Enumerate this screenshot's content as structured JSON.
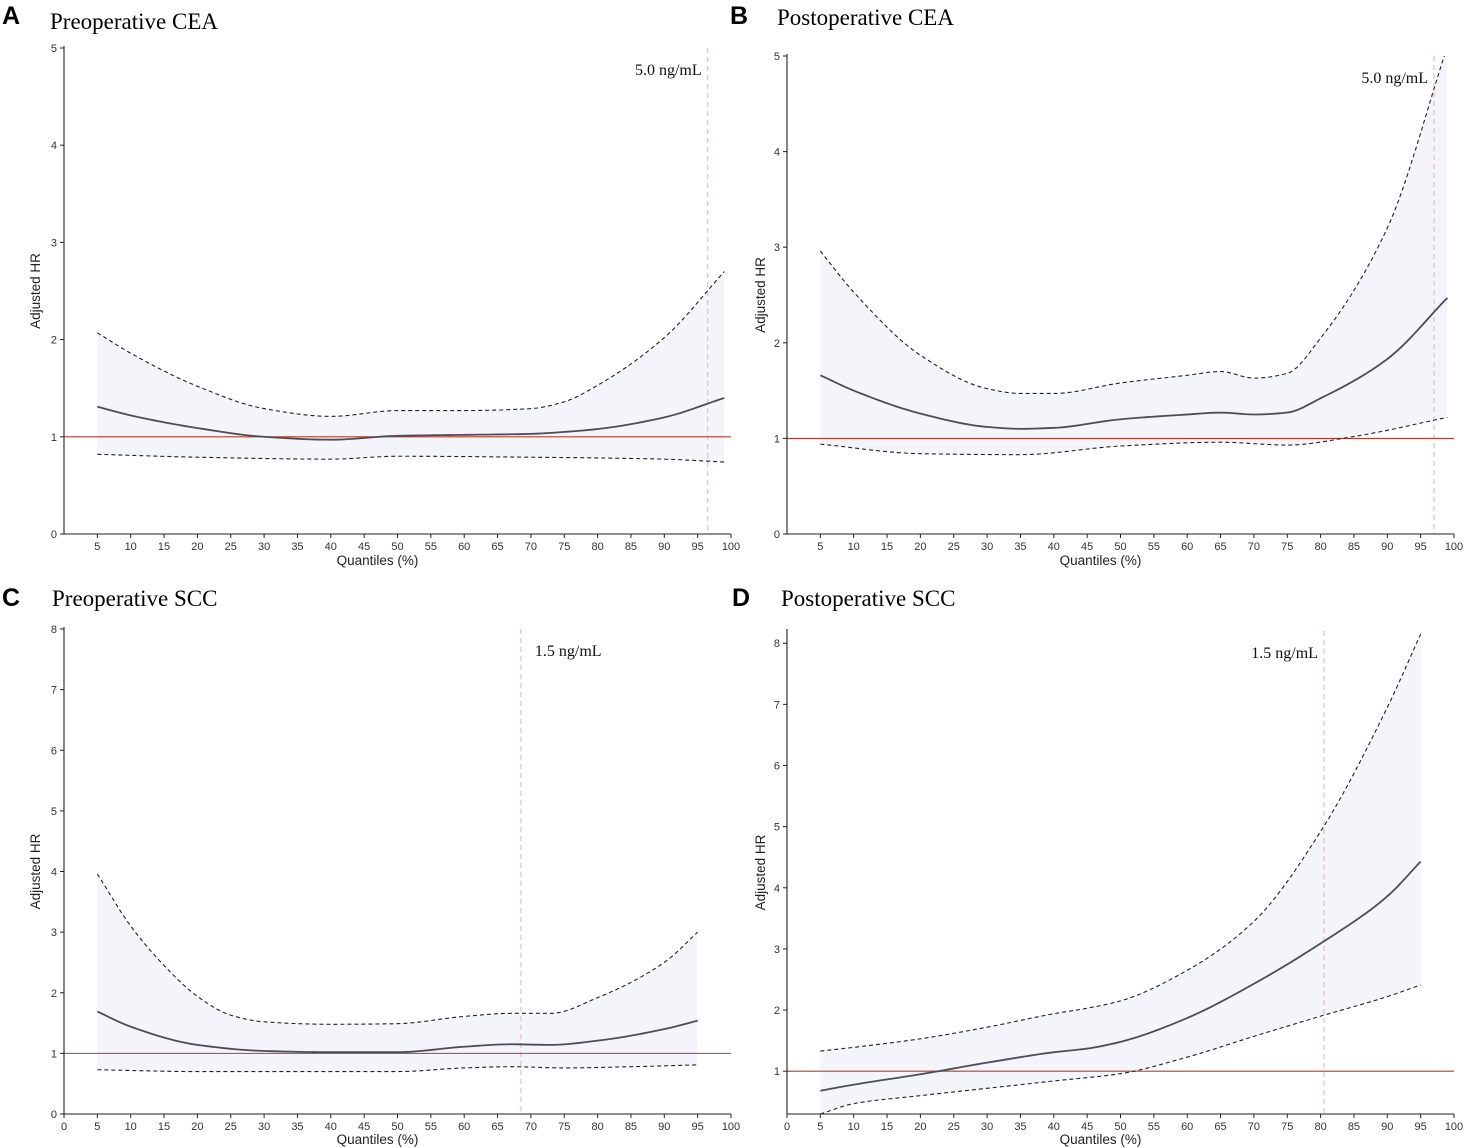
{
  "figure": {
    "colors": {
      "band_fill": "#f4f5fa",
      "fit_line": "#4d4d55",
      "ci_line": "#222222",
      "reference_line": "#c0392b",
      "cutoff_line": "#f2b8c0",
      "axis": "#222222"
    }
  },
  "chart_data": [
    {
      "id": "A",
      "letter": "A",
      "type": "line",
      "title": "Preoperative CEA",
      "xlabel": "Quantiles (%)",
      "ylabel": "Adjusted HR",
      "xlim": [
        0,
        100
      ],
      "ylim": [
        0,
        5
      ],
      "xticks": [
        5,
        10,
        15,
        20,
        25,
        30,
        35,
        40,
        45,
        50,
        55,
        60,
        65,
        70,
        75,
        80,
        85,
        90,
        95,
        100
      ],
      "yticks": [
        0,
        1,
        2,
        3,
        4,
        5
      ],
      "reference_line": {
        "y": 1
      },
      "cutoff": {
        "x": 96.5,
        "label": "5.0 ng/mL"
      },
      "series": [
        {
          "name": "Adjusted HR",
          "style": "solid",
          "x": [
            5,
            10,
            20,
            30,
            40,
            50,
            60,
            70,
            75,
            80,
            90,
            99
          ],
          "y": [
            1.31,
            1.22,
            1.09,
            1.0,
            0.97,
            1.01,
            1.02,
            1.03,
            1.05,
            1.08,
            1.2,
            1.4
          ]
        },
        {
          "name": "95% CI upper",
          "style": "dashed",
          "x": [
            5,
            10,
            20,
            30,
            40,
            50,
            60,
            70,
            75,
            80,
            90,
            99
          ],
          "y": [
            2.07,
            1.86,
            1.52,
            1.29,
            1.21,
            1.27,
            1.27,
            1.29,
            1.36,
            1.53,
            2.02,
            2.7
          ]
        },
        {
          "name": "95% CI lower",
          "style": "dashed",
          "x": [
            5,
            20,
            40,
            50,
            70,
            90,
            99
          ],
          "y": [
            0.82,
            0.79,
            0.77,
            0.8,
            0.79,
            0.77,
            0.74
          ]
        }
      ]
    },
    {
      "id": "B",
      "letter": "B",
      "type": "line",
      "title": "Postoperative CEA",
      "xlabel": "Quantiles (%)",
      "ylabel": "Adjusted HR",
      "xlim": [
        0,
        100
      ],
      "ylim": [
        0,
        5
      ],
      "xticks": [
        5,
        10,
        15,
        20,
        25,
        30,
        35,
        40,
        45,
        50,
        55,
        60,
        65,
        70,
        75,
        80,
        85,
        90,
        95,
        100
      ],
      "yticks": [
        0,
        1,
        2,
        3,
        4,
        5
      ],
      "reference_line": {
        "y": 1
      },
      "cutoff": {
        "x": 97,
        "label": "5.0 ng/mL"
      },
      "series": [
        {
          "name": "Adjusted HR",
          "style": "solid",
          "x": [
            5,
            10,
            20,
            30,
            35,
            40,
            50,
            60,
            65,
            70,
            75,
            80,
            90,
            99
          ],
          "y": [
            1.66,
            1.5,
            1.26,
            1.12,
            1.1,
            1.11,
            1.2,
            1.25,
            1.27,
            1.25,
            1.27,
            1.42,
            1.83,
            2.47
          ]
        },
        {
          "name": "95% CI upper",
          "style": "dashed",
          "x": [
            5,
            10,
            20,
            30,
            35,
            40,
            50,
            60,
            65,
            70,
            75,
            80,
            90,
            99
          ],
          "y": [
            2.96,
            2.53,
            1.87,
            1.52,
            1.47,
            1.47,
            1.58,
            1.66,
            1.7,
            1.63,
            1.68,
            2.05,
            3.2,
            5.1
          ]
        },
        {
          "name": "95% CI lower",
          "style": "dashed",
          "x": [
            5,
            20,
            35,
            50,
            65,
            75,
            85,
            99
          ],
          "y": [
            0.94,
            0.84,
            0.83,
            0.92,
            0.96,
            0.93,
            1.02,
            1.22
          ]
        }
      ]
    },
    {
      "id": "C",
      "letter": "C",
      "type": "line",
      "title": "Preoperative SCC",
      "xlabel": "Quantiles (%)",
      "ylabel": "Adjusted HR",
      "xlim": [
        0,
        100
      ],
      "ylim": [
        0,
        8
      ],
      "xticks": [
        0,
        5,
        10,
        15,
        20,
        25,
        30,
        35,
        40,
        45,
        50,
        55,
        60,
        65,
        70,
        75,
        80,
        85,
        90,
        95,
        100
      ],
      "yticks": [
        0,
        1,
        2,
        3,
        4,
        5,
        6,
        7,
        8
      ],
      "reference_line": {
        "y": 1
      },
      "cutoff": {
        "x": 68.5,
        "label": "1.5 ng/mL"
      },
      "series": [
        {
          "name": "Adjusted HR",
          "style": "solid",
          "x": [
            5,
            10,
            20,
            30,
            40,
            50,
            60,
            67,
            73,
            80,
            90,
            95
          ],
          "y": [
            1.69,
            1.44,
            1.14,
            1.04,
            1.02,
            1.02,
            1.11,
            1.15,
            1.14,
            1.21,
            1.4,
            1.54
          ]
        },
        {
          "name": "95% CI upper",
          "style": "dashed",
          "x": [
            5,
            10,
            15,
            20,
            25,
            30,
            40,
            50,
            60,
            67,
            73,
            80,
            90,
            95
          ],
          "y": [
            3.96,
            3.1,
            2.45,
            1.94,
            1.63,
            1.52,
            1.48,
            1.49,
            1.61,
            1.66,
            1.66,
            1.92,
            2.5,
            3.0
          ]
        },
        {
          "name": "95% CI lower",
          "style": "dashed",
          "x": [
            5,
            20,
            30,
            40,
            50,
            60,
            67,
            75,
            85,
            95
          ],
          "y": [
            0.73,
            0.7,
            0.7,
            0.7,
            0.7,
            0.76,
            0.78,
            0.76,
            0.78,
            0.81
          ]
        }
      ]
    },
    {
      "id": "D",
      "letter": "D",
      "type": "line",
      "title": "Postoperative SCC",
      "xlabel": "Quantiles (%)",
      "ylabel": "Adjusted HR",
      "xlim": [
        0,
        100
      ],
      "ylim": [
        0.3,
        8.2
      ],
      "xticks": [
        0,
        5,
        10,
        15,
        20,
        25,
        30,
        35,
        40,
        45,
        50,
        55,
        60,
        65,
        70,
        75,
        80,
        85,
        90,
        95,
        100
      ],
      "yticks": [
        1,
        2,
        3,
        4,
        5,
        6,
        7,
        8
      ],
      "reference_line": {
        "y": 1
      },
      "cutoff": {
        "x": 80.5,
        "label": "1.5 ng/mL"
      },
      "series": [
        {
          "name": "Adjusted HR",
          "style": "solid",
          "x": [
            5,
            10,
            20,
            30,
            40,
            45,
            50,
            60,
            70,
            80,
            90,
            95
          ],
          "y": [
            0.68,
            0.78,
            0.95,
            1.14,
            1.31,
            1.37,
            1.48,
            1.87,
            2.43,
            3.09,
            3.86,
            4.43
          ]
        },
        {
          "name": "95% CI upper",
          "style": "dashed",
          "x": [
            5,
            10,
            20,
            30,
            40,
            45,
            50,
            60,
            70,
            80,
            90,
            95
          ],
          "y": [
            1.33,
            1.39,
            1.53,
            1.72,
            1.94,
            2.03,
            2.15,
            2.65,
            3.45,
            4.92,
            6.95,
            8.15
          ]
        },
        {
          "name": "95% CI lower",
          "style": "dashed",
          "x": [
            5,
            10,
            20,
            30,
            40,
            50,
            60,
            70,
            80,
            90,
            95
          ],
          "y": [
            0.3,
            0.47,
            0.6,
            0.72,
            0.84,
            0.96,
            1.23,
            1.57,
            1.9,
            2.22,
            2.41
          ]
        }
      ]
    }
  ]
}
